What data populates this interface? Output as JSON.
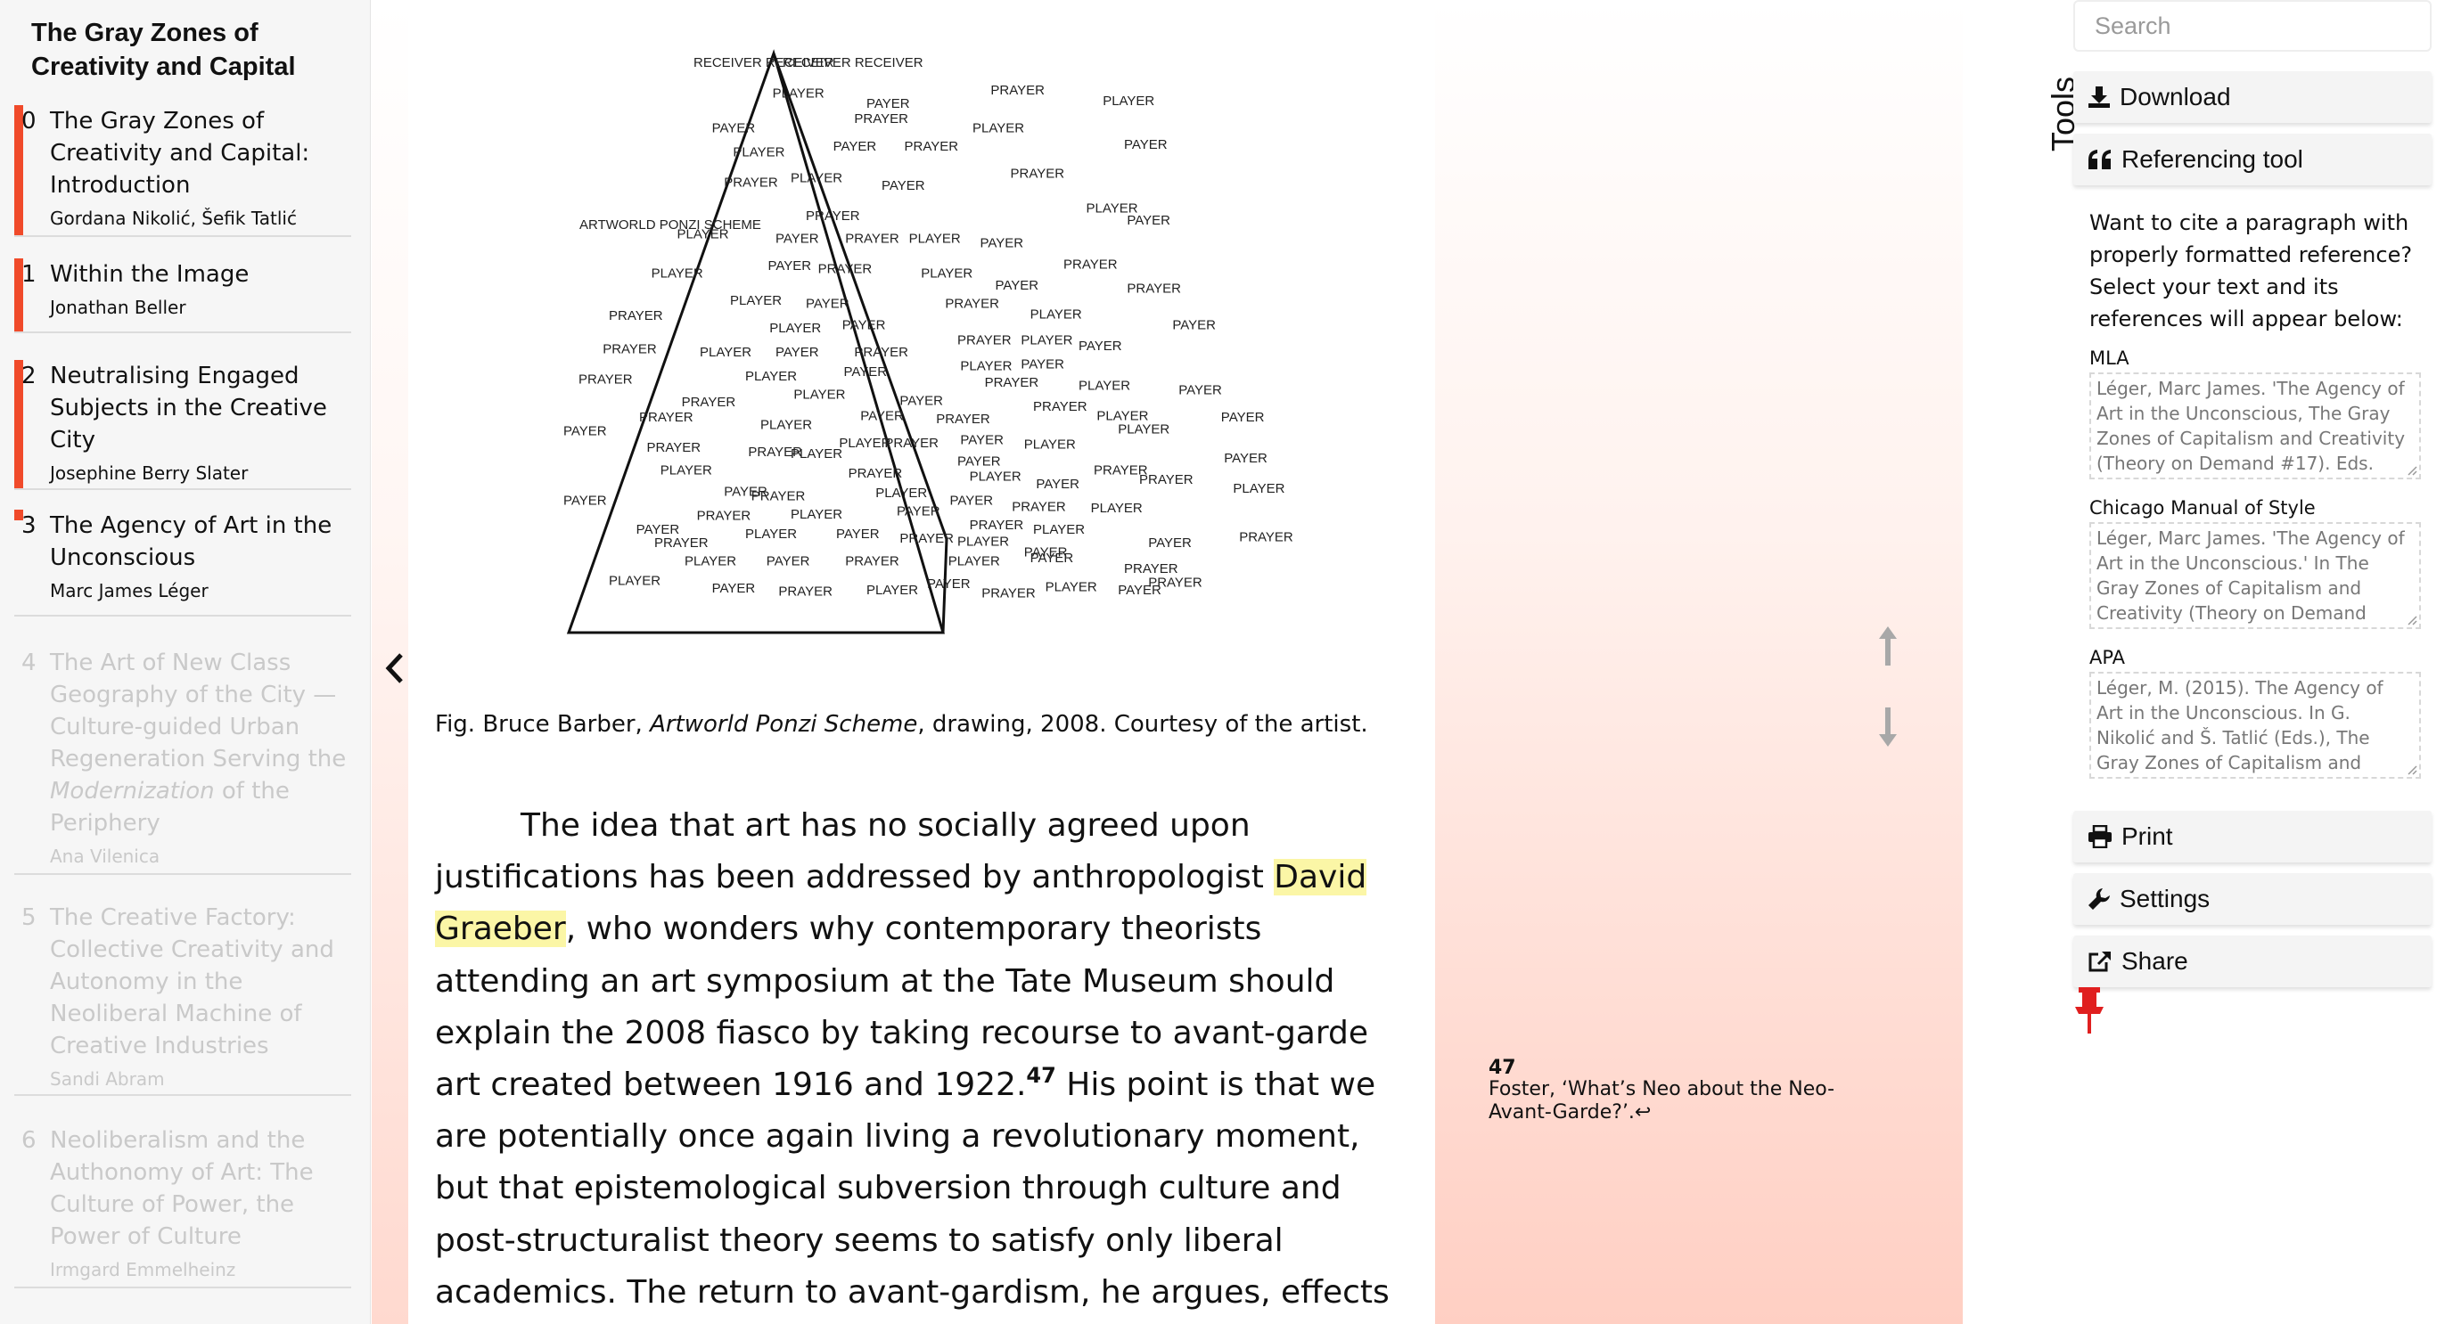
{
  "toc": {
    "book_title": "The Gray Zones of Creativity and Capital",
    "items": [
      {
        "num": "0",
        "label": "The Gray Zones of Creativity and Capital: Introduction",
        "author": "Gordana Nikolić, Šefik Tatlić",
        "read_fraction": 1.0
      },
      {
        "num": "1",
        "label": "Within the Image",
        "author": "Jonathan Beller",
        "read_fraction": 1.0
      },
      {
        "num": "2",
        "label": "Neutralising Engaged Subjects in the Creative City",
        "author": "Josephine Berry Slater",
        "read_fraction": 1.0
      },
      {
        "num": "3",
        "label": "The Agency of Art in the Unconscious",
        "author": "Marc James Léger",
        "read_fraction": 0.1
      },
      {
        "num": "4",
        "label_before": "The Art of New Class Geography of the City — Culture-guided Urban Regeneration Serving the ",
        "label_italic": "Modernization",
        "label_after": " of the Periphery",
        "author": "Ana Vilenica"
      },
      {
        "num": "5",
        "label": "The Creative Factory: Collective Creativity and Autonomy in the Neoliberal Machine of Creative Industries",
        "author": "Sandi Abram"
      },
      {
        "num": "6",
        "label": "Neoliberalism and the Authonomy of Art: The Culture of Power, the Power of Culture",
        "author": "Irmgard Emmelheinz"
      }
    ]
  },
  "figure": {
    "labels": {
      "apex_left": "RECEIVER RECEIVER",
      "apex_right": "RECEIVER RECEIVER",
      "scheme": "ARTWORLD PONZI SCHEME",
      "player": "PLAYER",
      "payer": "PAYER",
      "prayer": "PRAYER"
    },
    "caption_before": "Fig. Bruce Barber, ",
    "caption_title": "Artworld Ponzi Scheme",
    "caption_after": ", drawing, 2008. Courtesy of the artist."
  },
  "body": {
    "text_1": "The idea that art has no socially agreed upon justifications has been addressed by anthropologist ",
    "highlight": "David Graeber",
    "text_2": ", who wonders why contemporary theorists attending an art symposium at the Tate Museum should explain the 2008 fiasco by taking recourse to avant-garde art created between 1916 and 1922.",
    "footnote_ref": "47",
    "text_3": " His point is that we are potentially once again living a revolutionary moment, but that epistemological subversion through culture and post-structuralist theory seems to satisfy only liberal academics. The return to avant-gardism, he argues, effects"
  },
  "footnote": {
    "num": "47",
    "text": "Foster, ‘What’s Neo about the Neo-Avant-Garde?’.↩"
  },
  "tools": {
    "search_placeholder": "Search",
    "tab_label": "Tools",
    "download_label": "Download",
    "referencing_label": "Referencing tool",
    "ref_intro": "Want to cite a paragraph with properly formatted reference? Select your text and its references will appear below:",
    "mla_label": "MLA",
    "mla_text": "Léger, Marc James. 'The Agency of Art in the Unconscious, The Gray Zones of Capitalism and Creativity (Theory on Demand #17). Eds.",
    "chicago_label": "Chicago Manual of Style",
    "chicago_text": "Léger, Marc James. 'The Agency of Art in the Unconscious.' In The Gray Zones of Capitalism and Creativity (Theory on Demand",
    "apa_label": "APA",
    "apa_text": "Léger, M. (2015). The Agency of Art in the Unconscious. In G. Nikolić and Š. Tatlić (Eds.), The Gray Zones of Capitalism and",
    "print_label": "Print",
    "settings_label": "Settings",
    "share_label": "Share"
  },
  "colors": {
    "accent": "#f04a2a",
    "highlight": "#fbf6a6",
    "gradient_end": "#ffcfc3",
    "pin": "#e01f1f"
  }
}
